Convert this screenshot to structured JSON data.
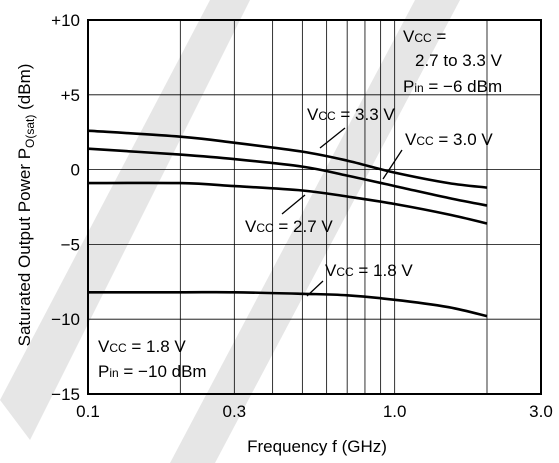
{
  "chart_data": {
    "type": "line",
    "xscale": "log",
    "xlabel": "Frequency  f (GHz)",
    "ylabel_main": "Saturated Output Power  P",
    "ylabel_sub": "O(sat)",
    "ylabel_unit": " (dBm)",
    "xlim": [
      0.1,
      3.0
    ],
    "ylim": [
      -15,
      10
    ],
    "x_ticks": [
      0.1,
      0.3,
      1.0,
      3.0
    ],
    "x_tick_labels": [
      "0.1",
      "0.3",
      "1.0",
      "3.0"
    ],
    "y_ticks": [
      10,
      5,
      0,
      -5,
      -10,
      -15
    ],
    "y_tick_labels": [
      "+10",
      "+5",
      "0",
      "−5",
      "−10",
      "−15"
    ],
    "grid": true,
    "series": [
      {
        "x": [
          0.1,
          0.2,
          0.3,
          0.5,
          0.7,
          1.0,
          1.5,
          2.0
        ],
        "y": [
          2.6,
          2.2,
          1.8,
          1.2,
          0.6,
          -0.2,
          -0.9,
          -1.2
        ]
      },
      {
        "x": [
          0.1,
          0.2,
          0.3,
          0.5,
          0.7,
          1.0,
          1.5,
          2.0
        ],
        "y": [
          1.4,
          1.0,
          0.7,
          0.2,
          -0.4,
          -1.1,
          -1.9,
          -2.4
        ]
      },
      {
        "x": [
          0.1,
          0.2,
          0.3,
          0.5,
          0.7,
          1.0,
          1.5,
          2.0
        ],
        "y": [
          -0.9,
          -0.9,
          -1.1,
          -1.4,
          -1.8,
          -2.3,
          -3.0,
          -3.6
        ]
      },
      {
        "x": [
          0.1,
          0.2,
          0.3,
          0.5,
          0.7,
          1.0,
          1.5,
          2.0
        ],
        "y": [
          -8.2,
          -8.2,
          -8.2,
          -8.3,
          -8.4,
          -8.7,
          -9.2,
          -9.8
        ]
      }
    ],
    "annotations": [
      {
        "main": "V",
        "sub": "CC",
        "rest": " = 3.3 V"
      },
      {
        "main": "V",
        "sub": "CC",
        "rest": " = 3.0 V"
      },
      {
        "main": "V",
        "sub": "CC",
        "rest": " = 2.7 V"
      },
      {
        "main": "V",
        "sub": "CC",
        "rest": " = 1.8 V"
      }
    ],
    "conditions_top": {
      "line1_main": "V",
      "line1_sub": "CC",
      "line1_rest": " =",
      "line2": "2.7 to 3.3 V",
      "line3_main": "P",
      "line3_sub": "in",
      "line3_rest": " = −6 dBm"
    },
    "conditions_bottom": {
      "line1_main": "V",
      "line1_sub": "CC",
      "line1_rest": " = 1.8 V",
      "line2_main": "P",
      "line2_sub": "in",
      "line2_rest": " = −10 dBm"
    }
  }
}
